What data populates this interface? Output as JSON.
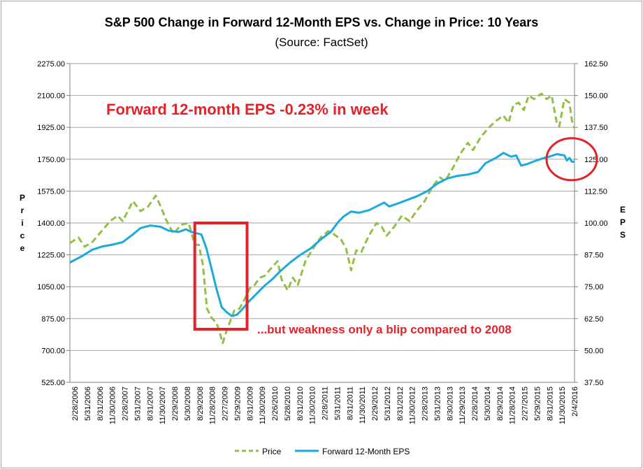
{
  "chart_data": {
    "type": "line",
    "title": "S&P 500 Change in Forward 12-Month EPS vs. Change in Price: 10 Years",
    "subtitle": "(Source: FactSet)",
    "ylabel_left": "Price",
    "ylabel_right": "EPS",
    "ylim_left": [
      525,
      2275
    ],
    "ylim_right": [
      37.5,
      162.5
    ],
    "yticks_left": [
      "2275.00",
      "2100.00",
      "1925.00",
      "1750.00",
      "1575.00",
      "1400.00",
      "1225.00",
      "1050.00",
      "875.00",
      "700.00",
      "525.00"
    ],
    "yticks_right": [
      "162.50",
      "150.00",
      "137.50",
      "125.00",
      "112.50",
      "100.00",
      "87.50",
      "75.00",
      "62.50",
      "50.00",
      "37.50"
    ],
    "xlim": [
      2006.16,
      2016.1
    ],
    "xticks": [
      "2/28/2006",
      "5/31/2006",
      "8/31/2006",
      "11/30/2006",
      "2/28/2007",
      "5/31/2007",
      "8/31/2007",
      "11/30/2007",
      "2/29/2008",
      "5/30/2008",
      "8/29/2008",
      "11/28/2008",
      "2/27/2009",
      "5/29/2009",
      "8/31/2009",
      "11/30/2009",
      "2/26/2010",
      "5/28/2010",
      "8/31/2010",
      "11/30/2010",
      "2/28/2011",
      "5/31/2011",
      "8/31/2011",
      "11/30/2011",
      "2/29/2012",
      "5/31/2012",
      "8/31/2012",
      "11/30/2012",
      "2/28/2013",
      "5/31/2013",
      "8/30/2013",
      "11/29/2013",
      "2/28/2014",
      "5/30/2014",
      "8/29/2014",
      "11/28/2014",
      "2/27/2015",
      "5/29/2015",
      "8/31/2015",
      "11/30/2015",
      "2/4/2016"
    ],
    "series": [
      {
        "name": "Price",
        "color": "#92c047",
        "style": "dashed",
        "axis": "left",
        "points": [
          [
            2006.16,
            1290
          ],
          [
            2006.33,
            1320
          ],
          [
            2006.45,
            1270
          ],
          [
            2006.6,
            1295
          ],
          [
            2006.8,
            1360
          ],
          [
            2006.95,
            1410
          ],
          [
            2007.1,
            1440
          ],
          [
            2007.2,
            1410
          ],
          [
            2007.4,
            1520
          ],
          [
            2007.55,
            1465
          ],
          [
            2007.7,
            1490
          ],
          [
            2007.85,
            1550
          ],
          [
            2007.95,
            1490
          ],
          [
            2008.05,
            1420
          ],
          [
            2008.2,
            1340
          ],
          [
            2008.35,
            1390
          ],
          [
            2008.5,
            1400
          ],
          [
            2008.62,
            1280
          ],
          [
            2008.7,
            1280
          ],
          [
            2008.78,
            1170
          ],
          [
            2008.86,
            930
          ],
          [
            2008.95,
            880
          ],
          [
            2009.05,
            850
          ],
          [
            2009.12,
            790
          ],
          [
            2009.17,
            740
          ],
          [
            2009.25,
            810
          ],
          [
            2009.33,
            870
          ],
          [
            2009.4,
            920
          ],
          [
            2009.5,
            930
          ],
          [
            2009.6,
            980
          ],
          [
            2009.7,
            1040
          ],
          [
            2009.8,
            1060
          ],
          [
            2009.9,
            1100
          ],
          [
            2010.0,
            1110
          ],
          [
            2010.15,
            1160
          ],
          [
            2010.25,
            1190
          ],
          [
            2010.33,
            1090
          ],
          [
            2010.45,
            1030
          ],
          [
            2010.55,
            1100
          ],
          [
            2010.65,
            1060
          ],
          [
            2010.8,
            1190
          ],
          [
            2010.95,
            1260
          ],
          [
            2011.1,
            1320
          ],
          [
            2011.25,
            1355
          ],
          [
            2011.35,
            1340
          ],
          [
            2011.5,
            1310
          ],
          [
            2011.6,
            1260
          ],
          [
            2011.7,
            1140
          ],
          [
            2011.8,
            1250
          ],
          [
            2011.9,
            1240
          ],
          [
            2012.05,
            1330
          ],
          [
            2012.2,
            1400
          ],
          [
            2012.3,
            1380
          ],
          [
            2012.4,
            1330
          ],
          [
            2012.55,
            1380
          ],
          [
            2012.7,
            1440
          ],
          [
            2012.85,
            1410
          ],
          [
            2013.0,
            1470
          ],
          [
            2013.15,
            1520
          ],
          [
            2013.3,
            1600
          ],
          [
            2013.45,
            1650
          ],
          [
            2013.55,
            1630
          ],
          [
            2013.7,
            1700
          ],
          [
            2013.85,
            1780
          ],
          [
            2014.0,
            1840
          ],
          [
            2014.1,
            1800
          ],
          [
            2014.25,
            1870
          ],
          [
            2014.4,
            1920
          ],
          [
            2014.55,
            1960
          ],
          [
            2014.7,
            1990
          ],
          [
            2014.8,
            1950
          ],
          [
            2014.9,
            2050
          ],
          [
            2015.0,
            2060
          ],
          [
            2015.1,
            2020
          ],
          [
            2015.2,
            2100
          ],
          [
            2015.3,
            2080
          ],
          [
            2015.45,
            2110
          ],
          [
            2015.55,
            2080
          ],
          [
            2015.65,
            2100
          ],
          [
            2015.75,
            1950
          ],
          [
            2015.8,
            1930
          ],
          [
            2015.9,
            2080
          ],
          [
            2016.0,
            2060
          ],
          [
            2016.05,
            1960
          ],
          [
            2016.1,
            1920
          ]
        ]
      },
      {
        "name": "Forward 12-Month EPS",
        "color": "#1ba9de",
        "style": "solid",
        "axis": "right",
        "points": [
          [
            2006.16,
            84.5
          ],
          [
            2006.4,
            87.0
          ],
          [
            2006.6,
            89.5
          ],
          [
            2006.8,
            90.8
          ],
          [
            2007.0,
            91.5
          ],
          [
            2007.2,
            92.5
          ],
          [
            2007.4,
            95.5
          ],
          [
            2007.55,
            98.0
          ],
          [
            2007.75,
            99.0
          ],
          [
            2007.95,
            98.5
          ],
          [
            2008.1,
            97.0
          ],
          [
            2008.3,
            96.5
          ],
          [
            2008.45,
            97.5
          ],
          [
            2008.55,
            96.5
          ],
          [
            2008.75,
            95.5
          ],
          [
            2008.85,
            90.0
          ],
          [
            2008.95,
            82.0
          ],
          [
            2009.05,
            74.0
          ],
          [
            2009.15,
            67.0
          ],
          [
            2009.25,
            65.0
          ],
          [
            2009.35,
            63.5
          ],
          [
            2009.45,
            64.0
          ],
          [
            2009.55,
            66.0
          ],
          [
            2009.7,
            69.5
          ],
          [
            2009.85,
            72.5
          ],
          [
            2010.0,
            75.5
          ],
          [
            2010.15,
            78.0
          ],
          [
            2010.3,
            81.0
          ],
          [
            2010.5,
            84.5
          ],
          [
            2010.7,
            87.5
          ],
          [
            2010.9,
            90.0
          ],
          [
            2011.1,
            93.5
          ],
          [
            2011.3,
            96.5
          ],
          [
            2011.45,
            100.5
          ],
          [
            2011.55,
            102.5
          ],
          [
            2011.7,
            104.5
          ],
          [
            2011.85,
            104.0
          ],
          [
            2012.05,
            105.0
          ],
          [
            2012.2,
            106.5
          ],
          [
            2012.35,
            108.0
          ],
          [
            2012.45,
            106.5
          ],
          [
            2012.6,
            107.5
          ],
          [
            2012.8,
            109.0
          ],
          [
            2013.0,
            110.5
          ],
          [
            2013.2,
            112.5
          ],
          [
            2013.4,
            115.5
          ],
          [
            2013.6,
            117.5
          ],
          [
            2013.8,
            118.5
          ],
          [
            2014.0,
            119.0
          ],
          [
            2014.2,
            120.0
          ],
          [
            2014.35,
            123.5
          ],
          [
            2014.55,
            125.5
          ],
          [
            2014.7,
            127.5
          ],
          [
            2014.85,
            126.0
          ],
          [
            2014.95,
            126.5
          ],
          [
            2015.05,
            122.5
          ],
          [
            2015.15,
            123.0
          ],
          [
            2015.35,
            124.5
          ],
          [
            2015.5,
            125.5
          ],
          [
            2015.6,
            126.0
          ],
          [
            2015.75,
            127.0
          ],
          [
            2015.9,
            126.5
          ],
          [
            2015.95,
            124.5
          ],
          [
            2016.0,
            125.5
          ],
          [
            2016.05,
            124.0
          ],
          [
            2016.1,
            124.0
          ]
        ]
      }
    ],
    "annotations": {
      "headline": "Forward 12-month EPS -0.23% in week",
      "note": "...but weakness only a blip compared to 2008",
      "highlight_box": {
        "x_from": 2008.62,
        "x_to": 2009.65
      },
      "highlight_circle": {
        "x": 2016.05,
        "y_right": 125.0
      }
    },
    "legend_position": "bottom",
    "grid": "horizontal"
  },
  "colors": {
    "gridline": "#a6a6a6",
    "annotation_red": "#e2232a",
    "text": "#000000"
  }
}
